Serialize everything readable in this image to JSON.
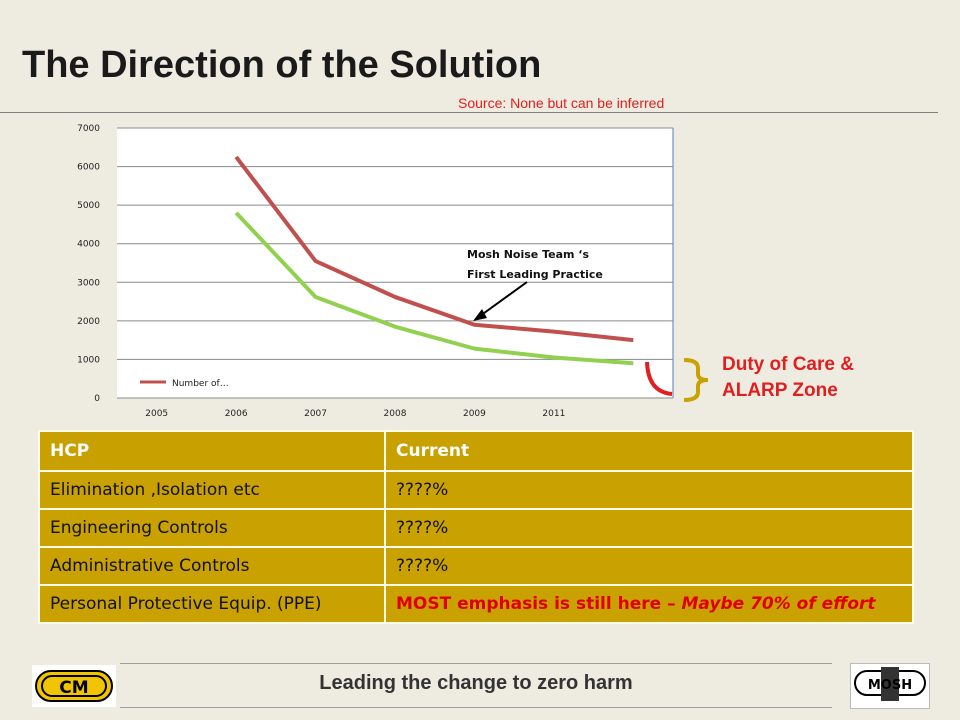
{
  "slide": {
    "title": "The Direction of the Solution",
    "source": "Source: None but can be inferred"
  },
  "chart_data": {
    "type": "line",
    "categories": [
      "2005",
      "2006",
      "2007",
      "2008",
      "2009",
      "2011",
      ""
    ],
    "series": [
      {
        "name": "Number of…",
        "color": "#c0504d",
        "values": [
          null,
          6250,
          3550,
          2620,
          1900,
          1720,
          1500
        ]
      },
      {
        "color": "#92d050",
        "values": [
          null,
          4800,
          2620,
          1850,
          1280,
          1050,
          900
        ]
      }
    ],
    "ylim": [
      0,
      7000
    ],
    "yticks": [
      "0",
      "1000",
      "2000",
      "3000",
      "4000",
      "5000",
      "6000",
      "7000"
    ],
    "grid": true,
    "legend": "bottom-left",
    "annotation": {
      "line1": "Mosh Noise Team ‘s",
      "line2": "First Leading Practice",
      "target_category": "2009"
    }
  },
  "duty_zone": {
    "line1": "Duty of Care &",
    "line2": "ALARP Zone",
    "curve_color": "#e02020",
    "brace_color": "#c9a100"
  },
  "table": {
    "headers": [
      "HCP",
      "Current"
    ],
    "rows": [
      {
        "hcp": "Elimination ,Isolation etc",
        "current": "????%"
      },
      {
        "hcp": "Engineering Controls",
        "current": "????%"
      },
      {
        "hcp": "Administrative Controls",
        "current": "????%"
      },
      {
        "hcp": "Personal Protective Equip. (PPE)",
        "current_a": "MOST emphasis is still here – ",
        "current_b": "Maybe 70% of effort"
      }
    ],
    "color": "#c9a100"
  },
  "footer": {
    "text": "Leading the change to zero harm",
    "left_logo": "CM",
    "right_logo": "MOSH"
  }
}
